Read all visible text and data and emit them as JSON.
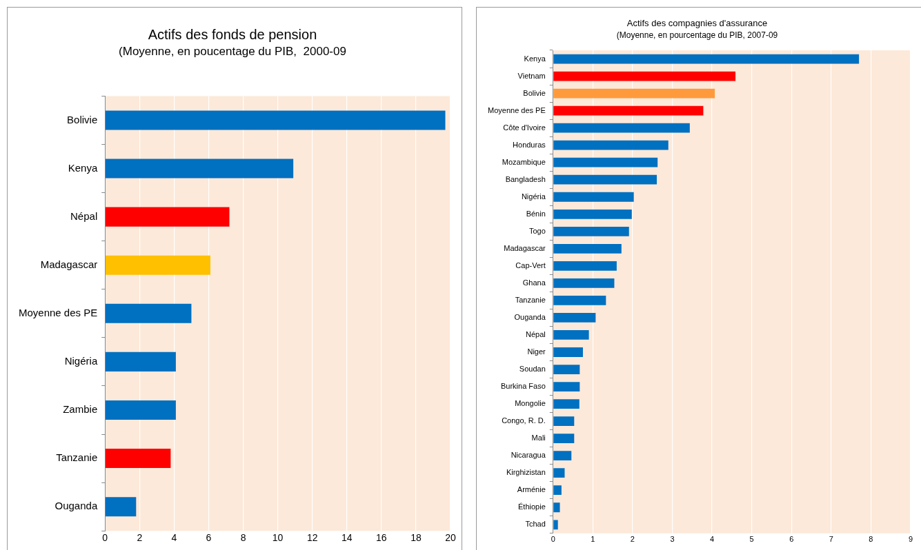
{
  "chart_data": [
    {
      "type": "bar",
      "orientation": "horizontal",
      "title": "Actifs des fonds de pension",
      "subtitle": "(Moyenne, en poucentage du PIB,  2000-09",
      "categories": [
        "Bolivie",
        "Kenya",
        "Népal",
        "Madagascar",
        "Moyenne des PE",
        "Nigéria",
        "Zambie",
        "Tanzanie",
        "Ouganda"
      ],
      "values": [
        19.7,
        10.9,
        7.2,
        6.1,
        5.0,
        4.1,
        4.1,
        3.8,
        1.8
      ],
      "colors": [
        "#0070c0",
        "#0070c0",
        "#ff0000",
        "#ffc000",
        "#0070c0",
        "#0070c0",
        "#0070c0",
        "#ff0000",
        "#0070c0"
      ],
      "xlim": [
        0,
        20
      ],
      "xticks": [
        0,
        2,
        4,
        6,
        8,
        10,
        12,
        14,
        16,
        18,
        20
      ],
      "grid": "x",
      "legend": false
    },
    {
      "type": "bar",
      "orientation": "horizontal",
      "title": "Actifs des compagnies d'assurance",
      "subtitle": "(Moyenne, en pourcentage du PIB, 2007-09",
      "categories": [
        "Kenya",
        "Vietnam",
        "Bolivie",
        "Moyenne des PE",
        "Côte d'Ivoire",
        "Honduras",
        "Mozambique",
        "Bangladesh",
        "Nigéria",
        "Bénin",
        "Togo",
        "Madagascar",
        "Cap-Vert",
        "Ghana",
        "Tanzanie",
        "Ouganda",
        "Népal",
        "Niger",
        "Soudan",
        "Burkina Faso",
        "Mongolie",
        "Congo, R. D.",
        "Mali",
        "Nicaragua",
        "Kirghizistan",
        "Arménie",
        "Éthiopie",
        "Tchad"
      ],
      "values": [
        7.7,
        4.59,
        4.07,
        3.78,
        3.44,
        2.9,
        2.63,
        2.61,
        2.03,
        1.98,
        1.91,
        1.72,
        1.6,
        1.54,
        1.33,
        1.07,
        0.9,
        0.75,
        0.67,
        0.67,
        0.66,
        0.53,
        0.53,
        0.46,
        0.29,
        0.21,
        0.17,
        0.12
      ],
      "colors": [
        "#0070c0",
        "#ff0000",
        "#ff9a3c",
        "#ff0000",
        "#0070c0",
        "#0070c0",
        "#0070c0",
        "#0070c0",
        "#0070c0",
        "#0070c0",
        "#0070c0",
        "#0070c0",
        "#0070c0",
        "#0070c0",
        "#0070c0",
        "#0070c0",
        "#0070c0",
        "#0070c0",
        "#0070c0",
        "#0070c0",
        "#0070c0",
        "#0070c0",
        "#0070c0",
        "#0070c0",
        "#0070c0",
        "#0070c0",
        "#0070c0",
        "#0070c0"
      ],
      "xlim": [
        0,
        9
      ],
      "xticks": [
        0,
        1,
        2,
        3,
        4,
        5,
        6,
        7,
        8,
        9
      ],
      "grid": "x",
      "legend": false
    }
  ]
}
